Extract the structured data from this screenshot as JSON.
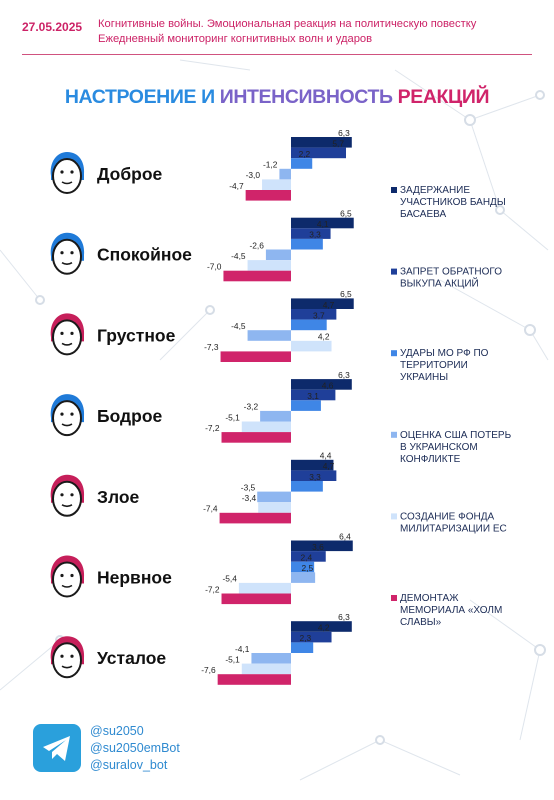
{
  "header": {
    "date": "27.05.2025",
    "line1": "Когнитивные войны. Эмоциональная реакция на политическую повестку",
    "line2": "Ежедневный мониторинг когнитивных волн и ударов"
  },
  "title": {
    "part1": "НАСТРОЕНИЕ И ",
    "part2": "ИНТЕНСИВНОСТЬ ",
    "part3": "РЕАКЦИЙ"
  },
  "chart_data": {
    "type": "bar",
    "orientation": "horizontal",
    "categories": [
      "Доброе",
      "Спокойное",
      "Грустное",
      "Бодрое",
      "Злое",
      "Нервное",
      "Усталое"
    ],
    "series": [
      {
        "name": "ЗАДЕРЖАНИЕ УЧАСТНИКОВ БАНДЫ БАСАЕВА",
        "color": "#0d2a6b",
        "values": [
          6.3,
          6.5,
          6.5,
          6.3,
          4.4,
          6.4,
          6.3
        ]
      },
      {
        "name": "ЗАПРЕТ ОБРАТНОГО ВЫКУПА АКЦИЙ",
        "color": "#1f3f99",
        "values": [
          5.7,
          4.1,
          4.7,
          4.6,
          4.7,
          3.6,
          4.2
        ]
      },
      {
        "name": "УДАРЫ МО РФ ПО ТЕРРИТОРИИ УКРАИНЫ",
        "color": "#3f86e6",
        "values": [
          2.2,
          3.3,
          3.7,
          3.1,
          3.3,
          2.4,
          2.3
        ]
      },
      {
        "name": "ОЦЕНКА США ПОТЕРЬ В УКРАИНСКОМ КОНФЛИКТЕ",
        "color": "#8eb6f0",
        "values": [
          -1.2,
          -2.6,
          -4.5,
          -3.2,
          -3.5,
          2.5,
          -4.1
        ]
      },
      {
        "name": "СОЗДАНИЕ ФОНДА МИЛИТАРИЗАЦИИ ЕС",
        "color": "#cfe3fb",
        "values": [
          -3.0,
          -4.5,
          4.2,
          -5.1,
          -3.4,
          -5.4,
          -5.1
        ]
      },
      {
        "name": "ДЕМОНТАЖ МЕМОРИАЛА «ХОЛМ СЛАВЫ»",
        "color": "#d0246a",
        "values": [
          -4.7,
          -7.0,
          -7.3,
          -7.2,
          -7.4,
          -7.2,
          -7.6
        ]
      }
    ],
    "labels": [
      [
        "6,3",
        "5,7",
        "2,2",
        "-1,2",
        "-3,0",
        "-4,7"
      ],
      [
        "6,5",
        "4,1",
        "3,3",
        "-2,6",
        "-4,5",
        "-7,0"
      ],
      [
        "6,5",
        "4,7",
        "3,7",
        "-4,5",
        "4,2",
        "-7,3"
      ],
      [
        "6,3",
        "4,6",
        "3,1",
        "-3,2",
        "-5,1",
        "-7,2"
      ],
      [
        "4,4",
        "4,7",
        "3,3",
        "-3,5",
        "-3,4",
        "-7,4"
      ],
      [
        "6,4",
        "3,6",
        "2,4",
        "2,5",
        "-5,4",
        "-7,2"
      ],
      [
        "6,3",
        "4,2",
        "2,3",
        "-4,1",
        "-5,1",
        "-7,6"
      ]
    ],
    "face_colors": [
      "#1f7ad8",
      "#1f7ad8",
      "#c61f5a",
      "#1f7ad8",
      "#c61f5a",
      "#c61f5a",
      "#c61f5a"
    ],
    "legend_position": "right"
  },
  "footer": {
    "handle1": "@su2050",
    "handle2": "@su2050emBot",
    "handle3": "@suralov_bot"
  }
}
